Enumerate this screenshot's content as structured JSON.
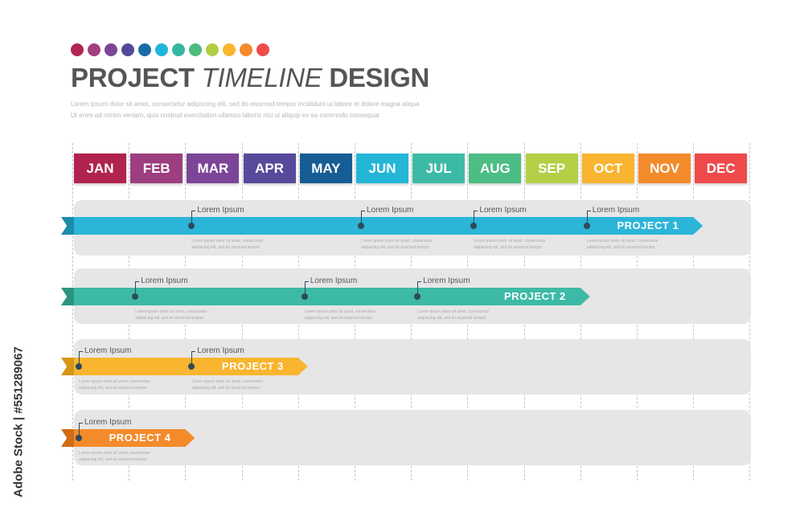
{
  "header": {
    "title_part1": "PROJECT",
    "title_part2": "TIMELINE",
    "title_part3": "DESIGN",
    "subtitle_line1": "Lorem ipsum dolor sit amet, consectetur adipiscing elit, sed do eiusmod tempor incididunt ut labore et dolore magna aliqua",
    "subtitle_line2": "Ut enim ad minim veniam, quis nostrud exercitation ullamco laboris nisi ut aliquip ex ea commodo consequat",
    "dot_colors": [
      "#b12556",
      "#a1407f",
      "#7b4497",
      "#524a98",
      "#1a6aa6",
      "#1fb5d8",
      "#36b7a0",
      "#4cbb7e",
      "#b3cd43",
      "#f8b62d",
      "#f58a2a",
      "#ef4b4b"
    ]
  },
  "months": [
    {
      "label": "JAN",
      "color": "#b0234f"
    },
    {
      "label": "FEB",
      "color": "#9c3e7f"
    },
    {
      "label": "MAR",
      "color": "#7c4597"
    },
    {
      "label": "APR",
      "color": "#574a9a"
    },
    {
      "label": "MAY",
      "color": "#175d95"
    },
    {
      "label": "JUN",
      "color": "#24b6d6"
    },
    {
      "label": "JUL",
      "color": "#3dbaa5"
    },
    {
      "label": "AUG",
      "color": "#4cbd84"
    },
    {
      "label": "SEP",
      "color": "#b4cf45"
    },
    {
      "label": "OCT",
      "color": "#f9b52f"
    },
    {
      "label": "NOV",
      "color": "#f48b2b"
    },
    {
      "label": "DEC",
      "color": "#ee4a4c"
    }
  ],
  "projects": [
    {
      "name": "PROJECT 1",
      "color": "#2bb5d8",
      "tail_color": "#1a8da8",
      "start_month": 0,
      "end_month": 11,
      "milestones": [
        {
          "label": "Lorem Ipsum",
          "month": 2,
          "desc": "Lorem ipsum dolor sit amet, consectetur adipiscing elit, sed do eiusmod tempor"
        },
        {
          "label": "Lorem Ipsum",
          "month": 5,
          "desc": "Lorem ipsum dolor sit amet, consectetur adipiscing elit, sed do eiusmod tempor"
        },
        {
          "label": "Lorem Ipsum",
          "month": 7,
          "desc": "Lorem ipsum dolor sit amet, consectetur adipiscing elit, sed do eiusmod tempor"
        },
        {
          "label": "Lorem Ipsum",
          "month": 9,
          "desc": "Lorem ipsum dolor sit amet, consectetur adipiscing elit, sed do eiusmod tempor"
        }
      ]
    },
    {
      "name": "PROJECT 2",
      "color": "#3dbaa5",
      "tail_color": "#2a9483",
      "start_month": 0,
      "end_month": 9,
      "milestones": [
        {
          "label": "Lorem Ipsum",
          "month": 1,
          "desc": "Lorem ipsum dolor sit amet, consectetur adipiscing elit, sed do eiusmod tempor"
        },
        {
          "label": "Lorem Ipsum",
          "month": 4,
          "desc": "Lorem ipsum dolor sit amet, consectetur adipiscing elit, sed do eiusmod tempor"
        },
        {
          "label": "Lorem Ipsum",
          "month": 6,
          "desc": "Lorem ipsum dolor sit amet, consectetur adipiscing elit, sed do eiusmod tempor"
        }
      ]
    },
    {
      "name": "PROJECT 3",
      "color": "#f9b52f",
      "tail_color": "#d69516",
      "start_month": 0,
      "end_month": 4,
      "milestones": [
        {
          "label": "Lorem Ipsum",
          "month": 0,
          "desc": "Lorem ipsum dolor sit amet, consectetur adipiscing elit, sed do eiusmod tempor"
        },
        {
          "label": "Lorem Ipsum",
          "month": 2,
          "desc": "Lorem ipsum dolor sit amet, consectetur adipiscing elit, sed do eiusmod tempor"
        }
      ]
    },
    {
      "name": "PROJECT 4",
      "color": "#f48b2b",
      "tail_color": "#cf6c15",
      "start_month": 0,
      "end_month": 2,
      "milestones": [
        {
          "label": "Lorem Ipsum",
          "month": 0,
          "desc": "Lorem ipsum dolor sit amet, consectetur adipiscing elit, sed do eiusmod tempor"
        }
      ]
    }
  ],
  "watermark": "Adobe Stock | #551289067"
}
